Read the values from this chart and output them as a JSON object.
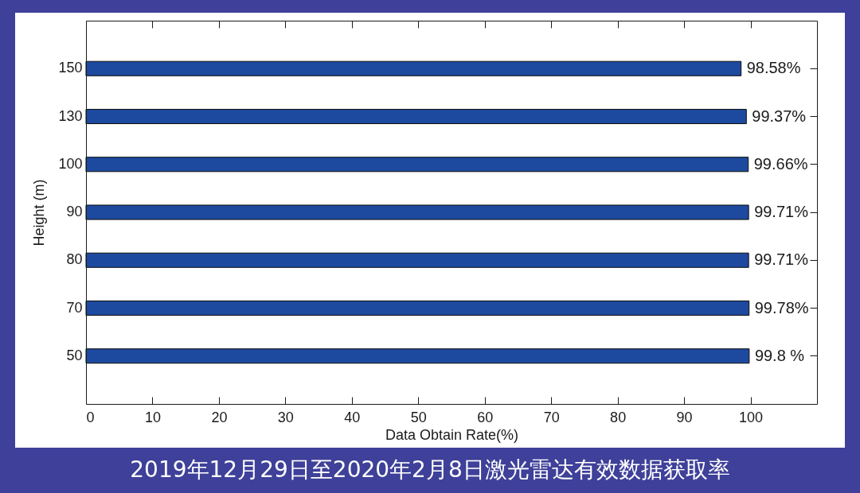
{
  "chart_data": {
    "type": "bar",
    "orientation": "horizontal",
    "title": "2019年12月29日至2020年2月8日激光雷达有效数据获取率",
    "xlabel": "Data Obtain Rate(%)",
    "ylabel": "Height (m)",
    "categories": [
      "150",
      "130",
      "100",
      "90",
      "80",
      "70",
      "50"
    ],
    "values": [
      98.58,
      99.37,
      99.66,
      99.71,
      99.71,
      99.78,
      99.8
    ],
    "value_labels": [
      "98.58%",
      "99.37%",
      "99.66%",
      "99.71%",
      "99.71%",
      "99.78%",
      "99.8 %"
    ],
    "color": "#1d4a9e",
    "xlim": [
      0,
      110
    ],
    "xticks": [
      0,
      10,
      20,
      30,
      40,
      50,
      60,
      70,
      80,
      90,
      100
    ],
    "grid": false
  }
}
